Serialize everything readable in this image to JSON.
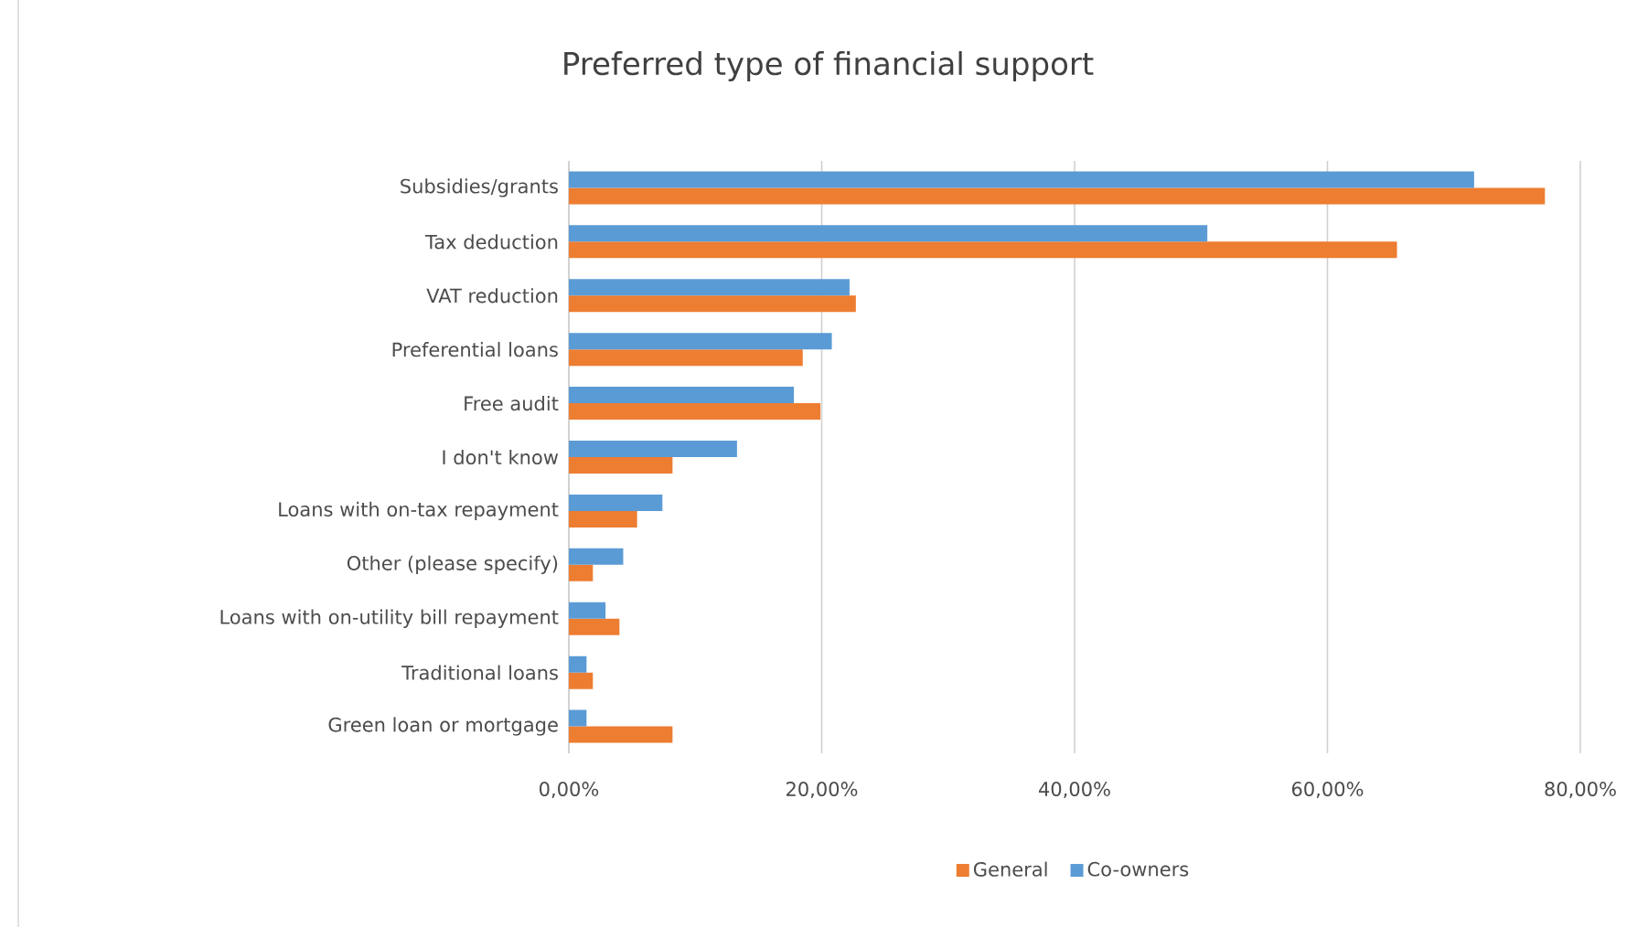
{
  "chart_data": {
    "type": "bar",
    "orientation": "horizontal",
    "title": "Preferred type of financial support",
    "categories": [
      "Subsidies/grants",
      "Tax deduction",
      "VAT reduction",
      "Preferential loans",
      "Free audit",
      "I don't know",
      "Loans with on-tax repayment",
      "Other (please specify)",
      "Loans with on-utility bill repayment",
      "Traditional loans",
      "Green loan or mortgage"
    ],
    "series": [
      {
        "name": "General",
        "color": "#ed7d31",
        "values": [
          77.2,
          65.5,
          22.7,
          18.5,
          19.9,
          8.2,
          5.4,
          1.9,
          4.0,
          1.9,
          8.2
        ]
      },
      {
        "name": "Co-owners",
        "color": "#5b9bd5",
        "values": [
          71.6,
          50.5,
          22.2,
          20.8,
          17.8,
          13.3,
          7.4,
          4.3,
          2.9,
          1.4,
          1.4
        ]
      }
    ],
    "xlim": [
      0,
      80
    ],
    "xticks": [
      {
        "value": 0,
        "label": "0,00%"
      },
      {
        "value": 20,
        "label": "20,00%"
      },
      {
        "value": 40,
        "label": "40,00%"
      },
      {
        "value": 60,
        "label": "60,00%"
      },
      {
        "value": 80,
        "label": "80,00%"
      }
    ],
    "grid": "x",
    "legend": "bottom"
  }
}
